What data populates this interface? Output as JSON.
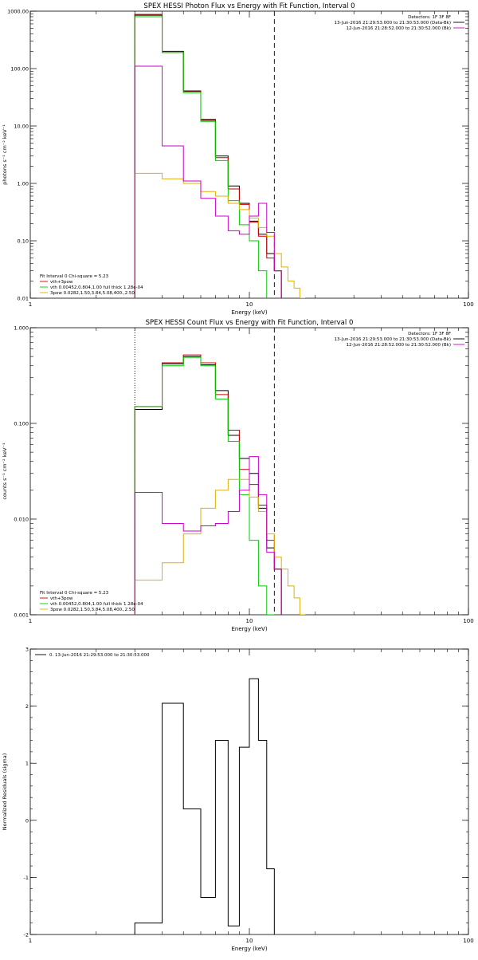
{
  "chart_data": [
    {
      "type": "line",
      "title": "SPEX HESSI Photon Flux vs Energy with Fit Function, Interval 0",
      "xlabel": "Energy (keV)",
      "ylabel": "photons s⁻¹ cm⁻² keV⁻¹",
      "xscale": "log",
      "yscale": "log",
      "xlim": [
        1,
        100
      ],
      "ylim": [
        0.01,
        1000
      ],
      "x_ticks": [
        {
          "v": 1,
          "label": "1"
        },
        {
          "v": 10,
          "label": "10"
        },
        {
          "v": 100,
          "label": "100"
        }
      ],
      "y_ticks": [
        {
          "v": 0.01,
          "label": "0.01"
        },
        {
          "v": 0.1,
          "label": "0.10"
        },
        {
          "v": 1,
          "label": "1.00"
        },
        {
          "v": 10,
          "label": "10.00"
        },
        {
          "v": 100,
          "label": "100.00"
        },
        {
          "v": 1000,
          "label": "1000.00"
        }
      ],
      "legend_top": [
        {
          "text": "Detectors: 1F 3F 8F",
          "color": "#000000",
          "line": false
        },
        {
          "text": "13-Jun-2016 21:29:53.000 to 21:30:53.000 (Data-Bk)",
          "color": "#000000",
          "line": true
        },
        {
          "text": "12-Jun-2016 21:28:52.000 to 21:30:52.000 (Bk)",
          "color": "#cc00cc",
          "line": true
        }
      ],
      "legend_bottom": [
        {
          "text": "Fit Interval 0   Chi-square = 5.23",
          "color": "#000000",
          "line": false
        },
        {
          "text": "vth+3pow",
          "color": "#cc0000",
          "line": true
        },
        {
          "text": "vth 0.00452,0.804,1.00  full thick 1.28e-04",
          "color": "#00cc00",
          "line": true
        },
        {
          "text": "3pow 0.0282,1.50,3.84,5.08,400.,2.50",
          "color": "#e0b000",
          "line": true
        }
      ],
      "vlines": [
        {
          "x": 3,
          "style": "dotted"
        },
        {
          "x": 13,
          "style": "dashed"
        }
      ],
      "edges": [
        3,
        4,
        5,
        6,
        7,
        8,
        9,
        10,
        11,
        12,
        13,
        14,
        15,
        16,
        17,
        18
      ],
      "series": [
        {
          "name": "Data-Bk",
          "color": "#000000",
          "values": [
            850,
            200,
            40,
            13,
            3,
            0.9,
            0.45,
            0.22,
            0.13,
            0.06,
            0.03
          ]
        },
        {
          "name": "vth+3pow",
          "color": "#cc0000",
          "values": [
            880,
            190,
            41,
            12.5,
            2.8,
            0.8,
            0.43,
            0.21,
            0.12,
            0.05,
            0.03
          ]
        },
        {
          "name": "vth",
          "color": "#00cc00",
          "values": [
            800,
            190,
            38,
            12,
            2.5,
            0.5,
            0.19,
            0.1,
            0.03
          ]
        },
        {
          "name": "3pow",
          "color": "#e0b000",
          "values": [
            1.5,
            1.2,
            1.0,
            0.72,
            0.6,
            0.45,
            0.35,
            0.25,
            0.17,
            0.12,
            0.06,
            0.035,
            0.02,
            0.015,
            0.01
          ]
        },
        {
          "name": "Bk",
          "color": "#cc00cc",
          "values": [
            110,
            4.5,
            1.1,
            0.55,
            0.27,
            0.15,
            0.13,
            0.27,
            0.45,
            0.14,
            0.03
          ]
        }
      ]
    },
    {
      "type": "line",
      "title": "SPEX HESSI Count Flux vs Energy with Fit Function, Interval 0",
      "xlabel": "Energy (keV)",
      "ylabel": "counts s⁻¹ cm⁻² keV⁻¹",
      "xscale": "log",
      "yscale": "log",
      "xlim": [
        1,
        100
      ],
      "ylim": [
        0.001,
        1
      ],
      "x_ticks": [
        {
          "v": 1,
          "label": "1"
        },
        {
          "v": 10,
          "label": "10"
        },
        {
          "v": 100,
          "label": "100"
        }
      ],
      "y_ticks": [
        {
          "v": 0.001,
          "label": "0.001"
        },
        {
          "v": 0.01,
          "label": "0.010"
        },
        {
          "v": 0.1,
          "label": "0.100"
        },
        {
          "v": 1,
          "label": "1.000"
        }
      ],
      "legend_top": [
        {
          "text": "Detectors: 1F 3F 8F",
          "color": "#000000",
          "line": false
        },
        {
          "text": "13-Jun-2016 21:29:53.000 to 21:30:53.000 (Data-Bk)",
          "color": "#000000",
          "line": true
        },
        {
          "text": "12-Jun-2016 21:28:52.000 to 21:30:52.000 (Bk)",
          "color": "#cc00cc",
          "line": true
        }
      ],
      "legend_bottom": [
        {
          "text": "Fit Interval 0   Chi-square = 5.23",
          "color": "#000000",
          "line": false
        },
        {
          "text": "vth+3pow",
          "color": "#cc0000",
          "line": true
        },
        {
          "text": "vth 0.00452,0.804,1.00  full thick 1.28e-04",
          "color": "#00cc00",
          "line": true
        },
        {
          "text": "3pow 0.0282,1.50,3.84,5.08,400.,2.50",
          "color": "#e0b000",
          "line": true
        }
      ],
      "vlines": [
        {
          "x": 3,
          "style": "dotted"
        },
        {
          "x": 13,
          "style": "dashed"
        }
      ],
      "edges": [
        3,
        4,
        5,
        6,
        7,
        8,
        9,
        10,
        11,
        12,
        13,
        14,
        15,
        16,
        17,
        18
      ],
      "series": [
        {
          "name": "Data-Bk",
          "color": "#000000",
          "values": [
            0.14,
            0.42,
            0.5,
            0.41,
            0.22,
            0.075,
            0.043,
            0.03,
            0.013,
            0.005,
            0.003
          ]
        },
        {
          "name": "vth+3pow",
          "color": "#cc0000",
          "values": [
            0.15,
            0.43,
            0.52,
            0.43,
            0.2,
            0.085,
            0.033,
            0.023,
            0.014,
            0.006,
            0.003
          ]
        },
        {
          "name": "vth",
          "color": "#00cc00",
          "values": [
            0.15,
            0.4,
            0.49,
            0.4,
            0.18,
            0.065,
            0.018,
            0.006,
            0.002,
            0.001
          ]
        },
        {
          "name": "3pow",
          "color": "#e0b000",
          "values": [
            0.0023,
            0.0035,
            0.007,
            0.013,
            0.02,
            0.026,
            0.026,
            0.017,
            0.012,
            0.007,
            0.004,
            0.003,
            0.002,
            0.0015,
            0.001
          ]
        },
        {
          "name": "Bk",
          "color": "#cc00cc",
          "values": [
            0.019,
            0.009,
            0.0075,
            0.0085,
            0.009,
            0.012,
            0.02,
            0.045,
            0.018,
            0.0045,
            0.003
          ]
        }
      ]
    },
    {
      "type": "line",
      "title": "",
      "xlabel": "Energy (keV)",
      "ylabel": "Normalized Residuals (sigma)",
      "xscale": "log",
      "yscale": "linear",
      "xlim": [
        1,
        100
      ],
      "ylim": [
        -2,
        3
      ],
      "x_ticks": [
        {
          "v": 1,
          "label": "1"
        },
        {
          "v": 10,
          "label": "10"
        },
        {
          "v": 100,
          "label": "100"
        }
      ],
      "y_ticks": [
        {
          "v": -2,
          "label": "-2"
        },
        {
          "v": -1,
          "label": "-1"
        },
        {
          "v": 0,
          "label": "0"
        },
        {
          "v": 1,
          "label": "1"
        },
        {
          "v": 2,
          "label": "2"
        },
        {
          "v": 3,
          "label": "3"
        }
      ],
      "legend_top": [
        {
          "text": "0. 13-Jun-2016 21:29:53.000 to 21:30:53.000",
          "color": "#000000",
          "line": true
        }
      ],
      "legend_bottom": [],
      "vlines": [],
      "edges": [
        3,
        4,
        5,
        6,
        7,
        8,
        9,
        10,
        11,
        12,
        13
      ],
      "series": [
        {
          "name": "0. 13-Jun-2016 21:29:53.000 to 21:30:53.000",
          "color": "#000000",
          "values": [
            -1.8,
            2.05,
            0.2,
            -1.35,
            1.4,
            -1.85,
            1.28,
            2.48,
            1.4,
            -0.85
          ]
        }
      ]
    }
  ]
}
